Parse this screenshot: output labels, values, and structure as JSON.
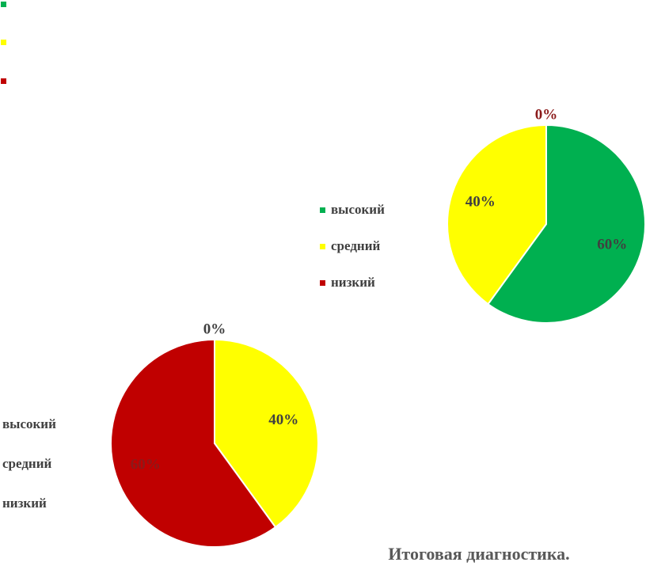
{
  "title": "Итоговая диагностика.",
  "chart_data": [
    {
      "type": "pie",
      "categories": [
        "высокий",
        "средний",
        "низкий"
      ],
      "values": [
        60,
        40,
        0
      ],
      "value_labels": [
        "60%",
        "40%",
        "0%"
      ],
      "colors": [
        "#00b050",
        "#ffff00",
        "#c00000"
      ],
      "legend": "left"
    },
    {
      "type": "pie",
      "categories": [
        "высокий",
        "средний",
        "низкий"
      ],
      "values": [
        0,
        40,
        60
      ],
      "value_labels": [
        "0%",
        "40%",
        "60%"
      ],
      "colors": [
        "#00b050",
        "#ffff00",
        "#c00000"
      ],
      "legend": "left"
    }
  ]
}
